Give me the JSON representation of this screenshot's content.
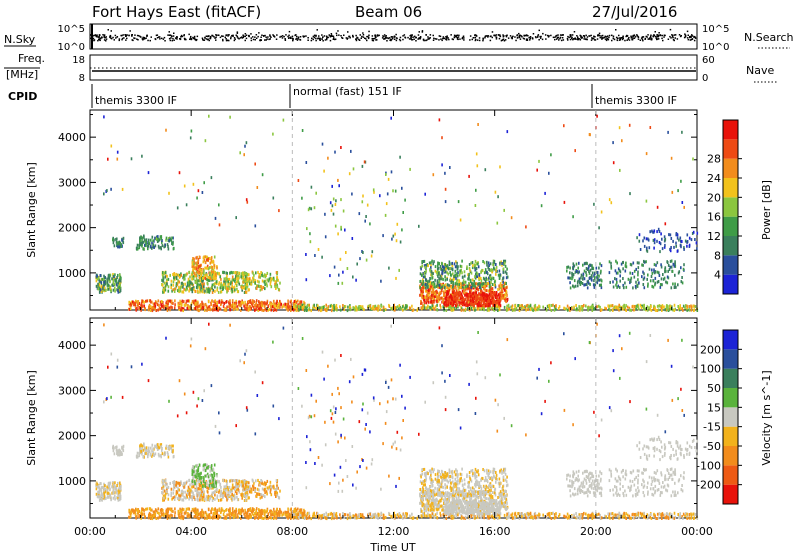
{
  "header": {
    "station": "Fort Hays East (fitACF)",
    "beam": "Beam 06",
    "date": "27/Jul/2016"
  },
  "top_panel": {
    "left_label": "N.Sky",
    "right_label": "N.Search",
    "left_ticks": [
      "10^5",
      "10^0"
    ],
    "right_ticks": [
      "10^5",
      "10^0"
    ]
  },
  "freq_panel": {
    "left_label_1": "Freq.",
    "left_label_2": "[MHz]",
    "right_label": "Nave",
    "left_ticks": [
      "18",
      "8"
    ],
    "right_ticks": [
      "60",
      "0"
    ]
  },
  "cpid": {
    "label": "CPID",
    "segments": [
      {
        "text": "themis 3300 IF"
      },
      {
        "text": "normal (fast) 151 IF"
      },
      {
        "text": "themis 3300 IF"
      }
    ]
  },
  "colors": {
    "power": [
      "#1c23d6",
      "#2a4f9c",
      "#3a7f5c",
      "#3f9c47",
      "#8bc63f",
      "#f2c21c",
      "#f28c1c",
      "#ee4a14",
      "#e8120a"
    ],
    "velocity": [
      "#1c23d6",
      "#2a4f9c",
      "#3a7f5c",
      "#5ab33c",
      "#c8c8c0",
      "#f2b21c",
      "#f28c1c",
      "#ee5a14",
      "#e8120a"
    ]
  },
  "chart_data": [
    {
      "type": "heatmap",
      "title": "",
      "ylabel": "Slant Range [km]",
      "ylim": [
        180,
        4600
      ],
      "yticks": [
        "1000",
        "2000",
        "3000",
        "4000"
      ],
      "xlabel": "",
      "xlim": [
        "00:00",
        "24:00"
      ],
      "colorbar_label": "Power [dB]",
      "colorbar_ticks": [
        "4",
        "8",
        "12",
        "16",
        "20",
        "24",
        "28"
      ],
      "colorbar_range": [
        0,
        30
      ]
    },
    {
      "type": "heatmap",
      "title": "",
      "ylabel": "Slant Range [km]",
      "ylim": [
        180,
        4600
      ],
      "yticks": [
        "1000",
        "2000",
        "3000",
        "4000"
      ],
      "xlabel": "Time UT",
      "xticks": [
        "00:00",
        "04:00",
        "08:00",
        "12:00",
        "16:00",
        "20:00",
        "00:00"
      ],
      "colorbar_label": "Velocity [m s^-1]",
      "colorbar_ticks": [
        "200",
        "100",
        "50",
        "15",
        "-15",
        "-50",
        "-100",
        "-200"
      ]
    }
  ]
}
